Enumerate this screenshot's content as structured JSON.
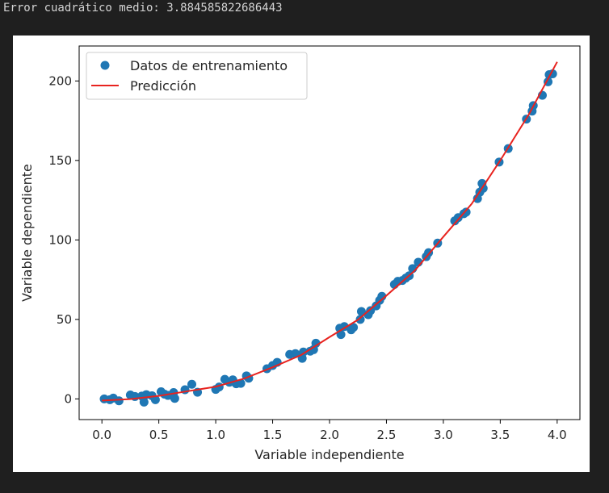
{
  "output": {
    "mse_text": "Error cuadrático medio: 3.884585822686443"
  },
  "colors": {
    "background": "#1f1f1f",
    "scatter": "#1f77b4",
    "prediction_line": "#e8231f",
    "figure": "#ffffff"
  },
  "chart_data": {
    "type": "scatter",
    "xlabel": "Variable independiente",
    "ylabel": "Variable dependiente",
    "xlim": [
      -0.2,
      4.2
    ],
    "ylim": [
      -13,
      222
    ],
    "xticks": [
      0.0,
      0.5,
      1.0,
      1.5,
      2.0,
      2.5,
      3.0,
      3.5,
      4.0
    ],
    "xtick_labels": [
      "0.0",
      "0.5",
      "1.0",
      "1.5",
      "2.0",
      "2.5",
      "3.0",
      "3.5",
      "4.0"
    ],
    "yticks": [
      0,
      50,
      100,
      150,
      200
    ],
    "ytick_labels": [
      "0",
      "50",
      "100",
      "150",
      "200"
    ],
    "grid": false,
    "legend_position": "upper-left",
    "legend": [
      {
        "label": "Datos de entrenamiento",
        "kind": "marker"
      },
      {
        "label": "Predicción",
        "kind": "line"
      }
    ],
    "series": [
      {
        "name": "Datos de entrenamiento",
        "kind": "scatter",
        "color": "#1f77b4",
        "points": [
          [
            0.02,
            0.0
          ],
          [
            0.07,
            -0.5
          ],
          [
            0.1,
            0.5
          ],
          [
            0.15,
            -1.2
          ],
          [
            0.25,
            2.5
          ],
          [
            0.29,
            1.5
          ],
          [
            0.35,
            1.8
          ],
          [
            0.37,
            -2.0
          ],
          [
            0.39,
            2.7
          ],
          [
            0.44,
            2.0
          ],
          [
            0.47,
            -0.5
          ],
          [
            0.52,
            4.5
          ],
          [
            0.55,
            3.0
          ],
          [
            0.58,
            2.2
          ],
          [
            0.63,
            4.0
          ],
          [
            0.64,
            0.3
          ],
          [
            0.73,
            5.8
          ],
          [
            0.79,
            9.2
          ],
          [
            0.84,
            4.2
          ],
          [
            1.0,
            6.0
          ],
          [
            1.03,
            7.5
          ],
          [
            1.08,
            12.3
          ],
          [
            1.12,
            10.5
          ],
          [
            1.15,
            12.0
          ],
          [
            1.18,
            9.5
          ],
          [
            1.22,
            9.8
          ],
          [
            1.27,
            14.5
          ],
          [
            1.29,
            13.0
          ],
          [
            1.45,
            19.0
          ],
          [
            1.5,
            21.0
          ],
          [
            1.54,
            23.0
          ],
          [
            1.65,
            28.0
          ],
          [
            1.7,
            28.5
          ],
          [
            1.76,
            25.5
          ],
          [
            1.77,
            29.5
          ],
          [
            1.83,
            30.0
          ],
          [
            1.86,
            31.0
          ],
          [
            1.88,
            35.0
          ],
          [
            2.09,
            44.5
          ],
          [
            2.1,
            40.5
          ],
          [
            2.13,
            45.5
          ],
          [
            2.19,
            43.5
          ],
          [
            2.21,
            45.0
          ],
          [
            2.27,
            50.0
          ],
          [
            2.28,
            55.0
          ],
          [
            2.34,
            53.0
          ],
          [
            2.36,
            55.5
          ],
          [
            2.41,
            58.5
          ],
          [
            2.44,
            62.0
          ],
          [
            2.46,
            64.5
          ],
          [
            2.57,
            72.0
          ],
          [
            2.6,
            74.0
          ],
          [
            2.64,
            74.5
          ],
          [
            2.67,
            76.0
          ],
          [
            2.7,
            77.5
          ],
          [
            2.73,
            82.0
          ],
          [
            2.78,
            86.0
          ],
          [
            2.85,
            89.5
          ],
          [
            2.87,
            92.0
          ],
          [
            2.95,
            98.0
          ],
          [
            3.1,
            112.0
          ],
          [
            3.13,
            114.0
          ],
          [
            3.18,
            116.5
          ],
          [
            3.2,
            117.5
          ],
          [
            3.3,
            126.0
          ],
          [
            3.32,
            130.0
          ],
          [
            3.34,
            135.5
          ],
          [
            3.35,
            132.5
          ],
          [
            3.49,
            149.0
          ],
          [
            3.57,
            157.5
          ],
          [
            3.73,
            176.0
          ],
          [
            3.78,
            181.0
          ],
          [
            3.79,
            184.5
          ],
          [
            3.87,
            191.0
          ],
          [
            3.92,
            199.5
          ],
          [
            3.93,
            204.0
          ],
          [
            3.96,
            204.5
          ]
        ]
      },
      {
        "name": "Predicción",
        "kind": "line",
        "color": "#e8231f",
        "points": [
          [
            0.0,
            -1.0
          ],
          [
            0.25,
            -0.1
          ],
          [
            0.5,
            1.9
          ],
          [
            0.75,
            4.8
          ],
          [
            1.0,
            7.7
          ],
          [
            1.25,
            12.8
          ],
          [
            1.5,
            19.9
          ],
          [
            1.75,
            27.6
          ],
          [
            2.0,
            38.9
          ],
          [
            2.25,
            49.8
          ],
          [
            2.5,
            65.0
          ],
          [
            2.75,
            80.8
          ],
          [
            3.0,
            102.0
          ],
          [
            3.25,
            122.8
          ],
          [
            3.5,
            150.0
          ],
          [
            3.75,
            178.8
          ],
          [
            4.0,
            212.0
          ]
        ]
      }
    ]
  }
}
